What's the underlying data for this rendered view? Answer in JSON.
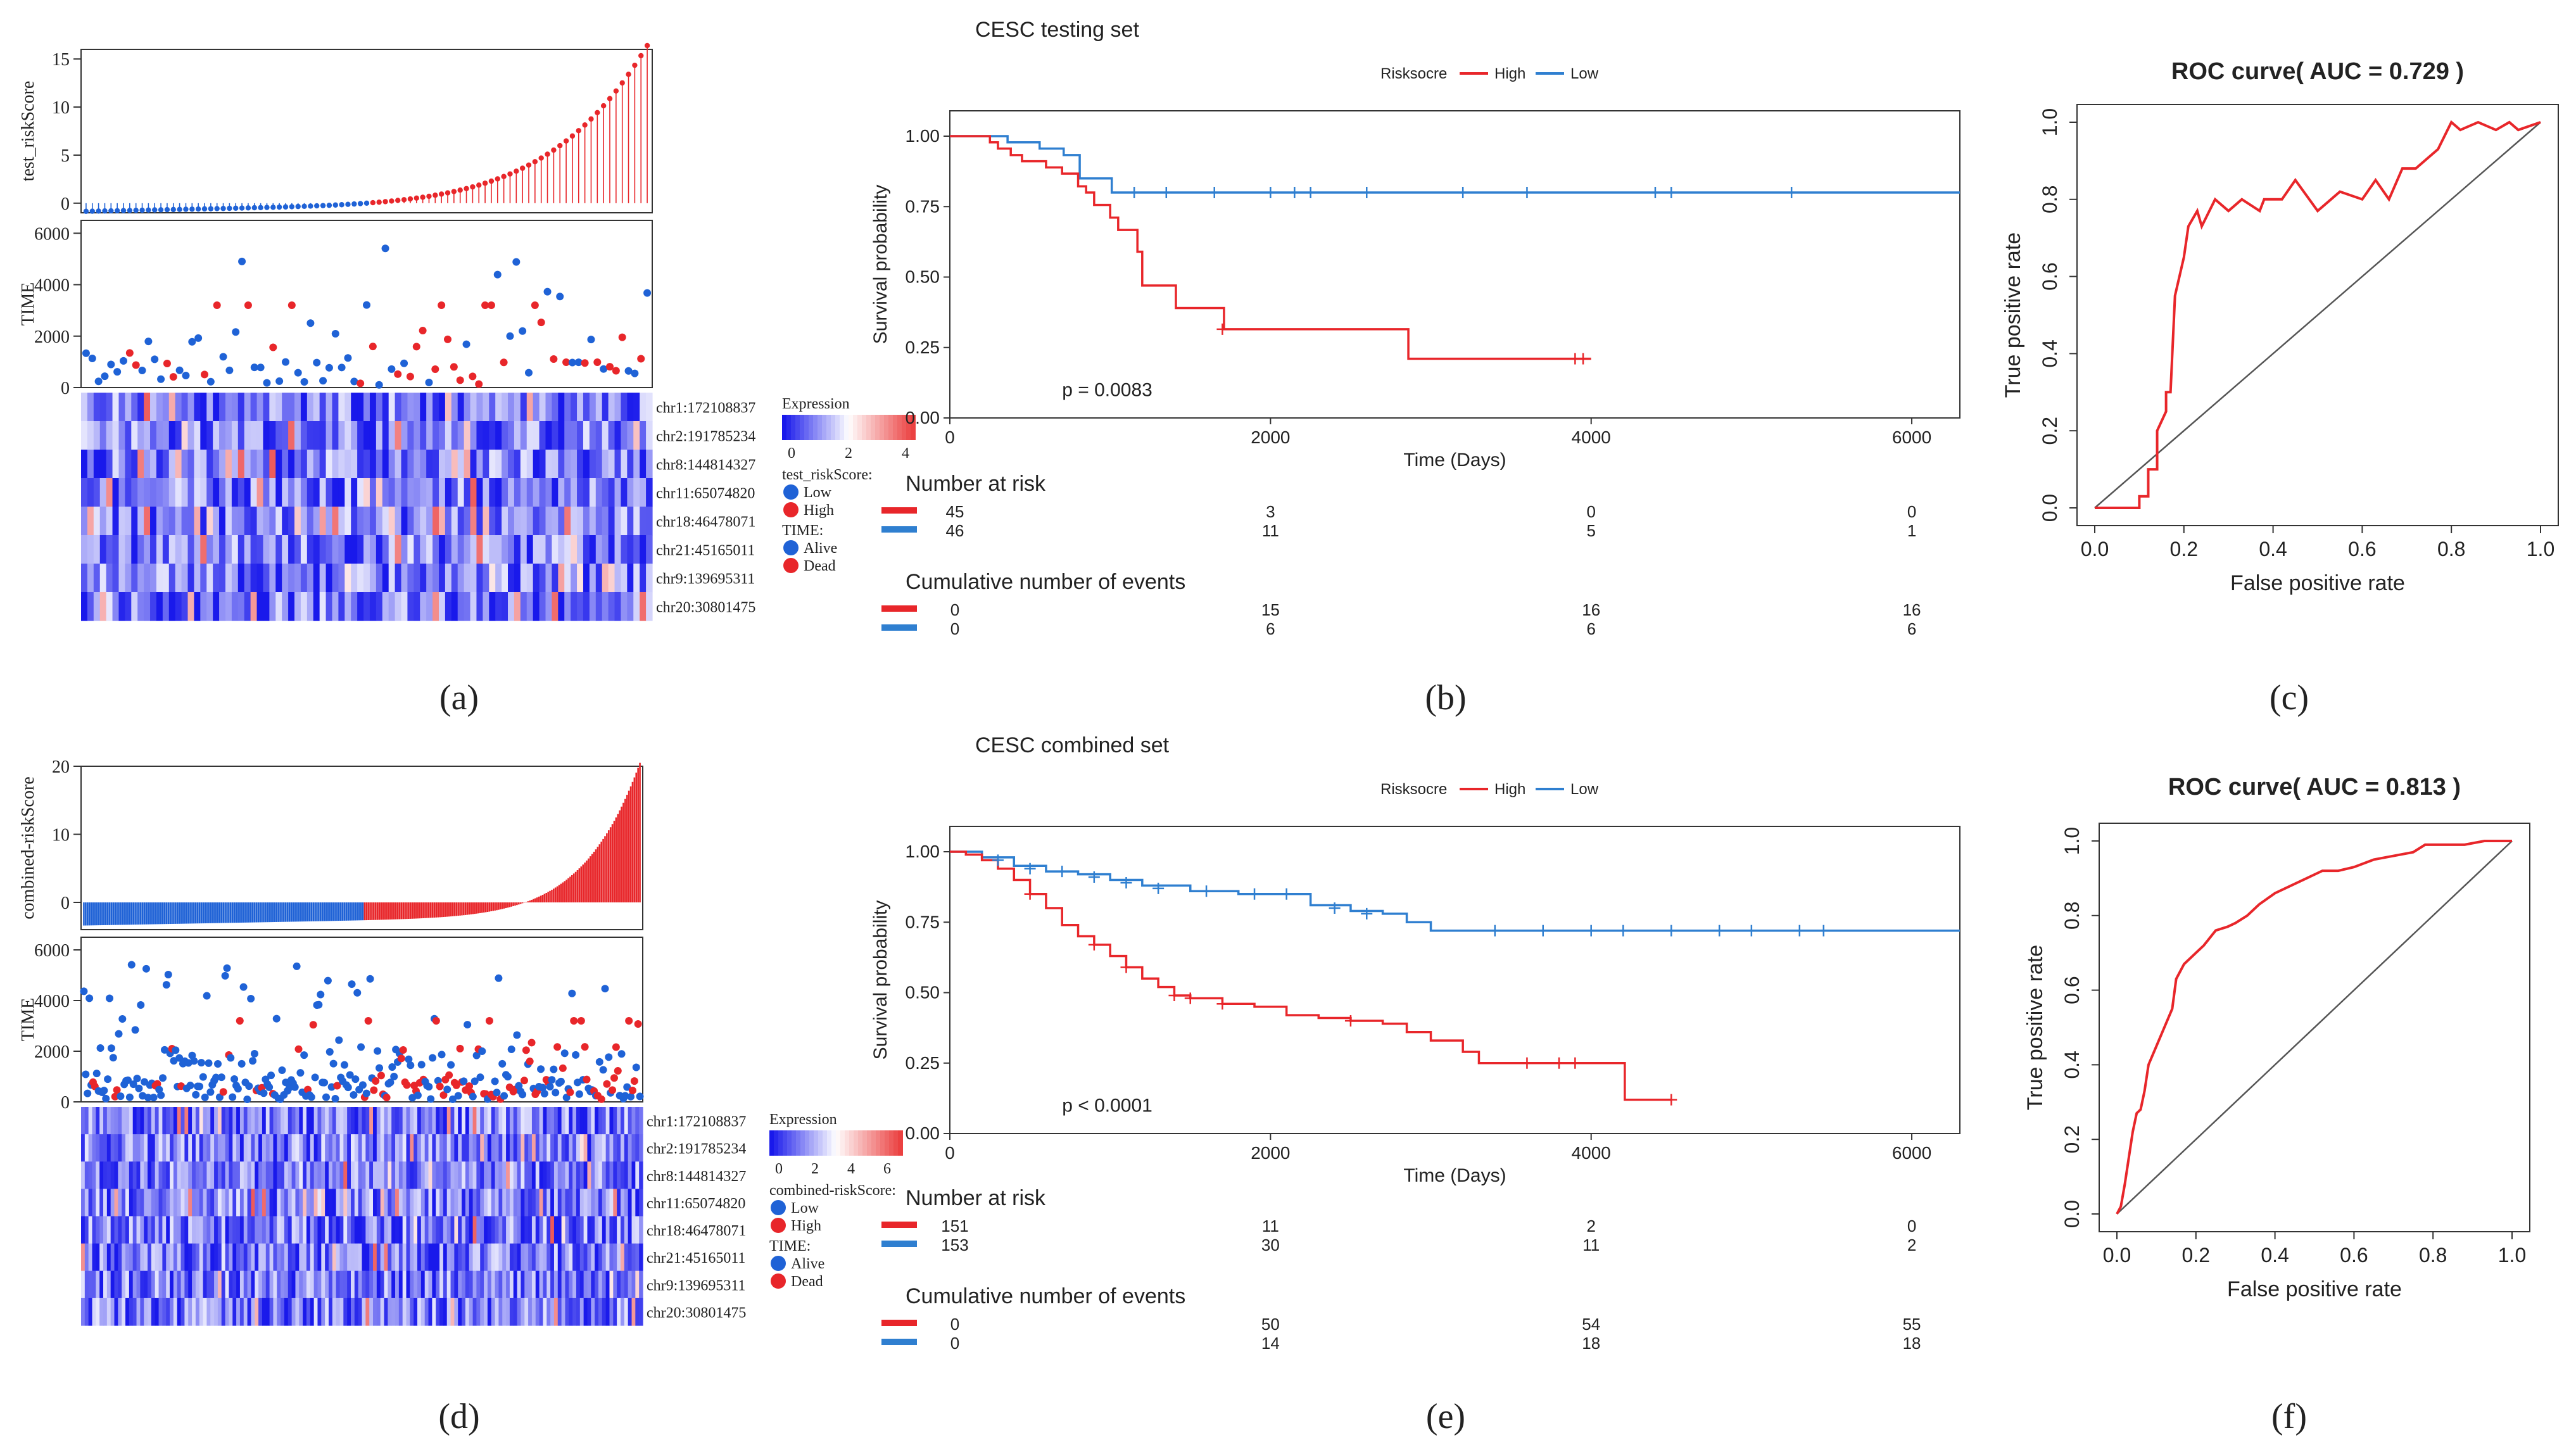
{
  "panel_labels": [
    "(a)",
    "(b)",
    "(c)",
    "(d)",
    "(e)",
    "(f)"
  ],
  "colors": {
    "high": "#e8262a",
    "low": "#1f62d6",
    "km_high": "#e8262a",
    "km_low": "#2f7fd0",
    "ref": "#555555"
  },
  "chart_data": [
    {
      "id": "a",
      "type": "risk-plot",
      "score_label": "test_riskScore",
      "score_ylim": [
        -1,
        16
      ],
      "score_ticks": [
        "0",
        "5",
        "10",
        "15"
      ],
      "time_label": "TIME",
      "time_ylim": [
        0,
        6500
      ],
      "time_ticks": [
        "0",
        "2000",
        "4000",
        "6000"
      ],
      "n_low": 46,
      "n_high": 45,
      "genes": [
        "chr1:172108837",
        "chr2:191785234",
        "chr8:144814327",
        "chr11:65074820",
        "chr18:46478071",
        "chr21:45165011",
        "chr9:139695311",
        "chr20:30801475"
      ],
      "legend": {
        "expression_title": "Expression",
        "expression_ticks": [
          "0",
          "2",
          "4"
        ],
        "risk_title": "test_riskScore:",
        "risk_items": [
          "Low",
          "High"
        ],
        "time_title": "TIME:",
        "time_items": [
          "Alive",
          "Dead"
        ]
      }
    },
    {
      "id": "b",
      "type": "line",
      "title": "CESC testing set",
      "legend_title": "Risksocre",
      "series_names": [
        "High",
        "Low"
      ],
      "xlabel": "Time (Days)",
      "ylabel": "Survival probability",
      "xlim": [
        0,
        6300
      ],
      "ylim": [
        0,
        1.0
      ],
      "xticks": [
        "0",
        "2000",
        "4000",
        "6000"
      ],
      "yticks": [
        "0.00",
        "0.25",
        "0.50",
        "0.75",
        "1.00"
      ],
      "pvalue": "p = 0.0083",
      "high_curve": [
        [
          0,
          1.0
        ],
        [
          200,
          1.0
        ],
        [
          250,
          0.978
        ],
        [
          300,
          0.956
        ],
        [
          380,
          0.933
        ],
        [
          450,
          0.911
        ],
        [
          600,
          0.889
        ],
        [
          700,
          0.867
        ],
        [
          800,
          0.822
        ],
        [
          850,
          0.8
        ],
        [
          900,
          0.756
        ],
        [
          1000,
          0.711
        ],
        [
          1050,
          0.667
        ],
        [
          1150,
          0.667
        ],
        [
          1170,
          0.59
        ],
        [
          1200,
          0.47
        ],
        [
          1400,
          0.47
        ],
        [
          1410,
          0.39
        ],
        [
          1700,
          0.39
        ],
        [
          1710,
          0.315
        ],
        [
          2850,
          0.315
        ],
        [
          2860,
          0.21
        ],
        [
          4000,
          0.21
        ]
      ],
      "high_censor": [
        [
          1700,
          0.315
        ],
        [
          3900,
          0.21
        ],
        [
          3950,
          0.21
        ]
      ],
      "low_curve": [
        [
          0,
          1.0
        ],
        [
          350,
          1.0
        ],
        [
          360,
          0.978
        ],
        [
          550,
          0.978
        ],
        [
          560,
          0.956
        ],
        [
          700,
          0.956
        ],
        [
          710,
          0.933
        ],
        [
          800,
          0.933
        ],
        [
          810,
          0.85
        ],
        [
          1000,
          0.85
        ],
        [
          1010,
          0.8
        ],
        [
          6300,
          0.8
        ]
      ],
      "low_censor": [
        [
          1150,
          0.8
        ],
        [
          1350,
          0.8
        ],
        [
          1650,
          0.8
        ],
        [
          2000,
          0.8
        ],
        [
          2150,
          0.8
        ],
        [
          2250,
          0.8
        ],
        [
          2600,
          0.8
        ],
        [
          3200,
          0.8
        ],
        [
          3600,
          0.8
        ],
        [
          4400,
          0.8
        ],
        [
          4500,
          0.8
        ],
        [
          5250,
          0.8
        ]
      ],
      "risk_table": {
        "title": "Number at risk",
        "high": [
          "45",
          "3",
          "0",
          "0"
        ],
        "low": [
          "46",
          "11",
          "5",
          "1"
        ]
      },
      "events_table": {
        "title": "Cumulative number of events",
        "high": [
          "0",
          "15",
          "16",
          "16"
        ],
        "low": [
          "0",
          "6",
          "6",
          "6"
        ]
      }
    },
    {
      "id": "c",
      "type": "line",
      "title": "ROC curve( AUC =  0.729 )",
      "xlabel": "False positive rate",
      "ylabel": "True positive rate",
      "xlim": [
        0,
        1
      ],
      "ylim": [
        0,
        1
      ],
      "ticks": [
        "0.0",
        "0.2",
        "0.4",
        "0.6",
        "0.8",
        "1.0"
      ],
      "auc": 0.729,
      "curve": [
        [
          0,
          0
        ],
        [
          0.1,
          0
        ],
        [
          0.1,
          0.03
        ],
        [
          0.12,
          0.03
        ],
        [
          0.12,
          0.1
        ],
        [
          0.14,
          0.1
        ],
        [
          0.14,
          0.2
        ],
        [
          0.16,
          0.25
        ],
        [
          0.16,
          0.3
        ],
        [
          0.17,
          0.3
        ],
        [
          0.18,
          0.55
        ],
        [
          0.2,
          0.65
        ],
        [
          0.21,
          0.73
        ],
        [
          0.23,
          0.77
        ],
        [
          0.24,
          0.73
        ],
        [
          0.27,
          0.8
        ],
        [
          0.3,
          0.77
        ],
        [
          0.33,
          0.8
        ],
        [
          0.37,
          0.77
        ],
        [
          0.38,
          0.8
        ],
        [
          0.42,
          0.8
        ],
        [
          0.45,
          0.85
        ],
        [
          0.5,
          0.77
        ],
        [
          0.55,
          0.82
        ],
        [
          0.6,
          0.8
        ],
        [
          0.63,
          0.85
        ],
        [
          0.66,
          0.8
        ],
        [
          0.69,
          0.88
        ],
        [
          0.72,
          0.88
        ],
        [
          0.77,
          0.93
        ],
        [
          0.8,
          1.0
        ],
        [
          0.82,
          0.98
        ],
        [
          0.86,
          1.0
        ],
        [
          0.9,
          0.98
        ],
        [
          0.93,
          1.0
        ],
        [
          0.95,
          0.98
        ],
        [
          1.0,
          1.0
        ]
      ]
    },
    {
      "id": "d",
      "type": "risk-plot",
      "score_label": "combined-riskScore",
      "score_ylim": [
        -4,
        20
      ],
      "score_ticks": [
        "0",
        "10",
        "20"
      ],
      "time_label": "TIME",
      "time_ylim": [
        0,
        6500
      ],
      "time_ticks": [
        "0",
        "2000",
        "4000",
        "6000"
      ],
      "n_low": 153,
      "n_high": 151,
      "genes": [
        "chr1:172108837",
        "chr2:191785234",
        "chr8:144814327",
        "chr11:65074820",
        "chr18:46478071",
        "chr21:45165011",
        "chr9:139695311",
        "chr20:30801475"
      ],
      "legend": {
        "expression_title": "Expression",
        "expression_ticks": [
          "0",
          "2",
          "4",
          "6"
        ],
        "risk_title": "combined-riskScore:",
        "risk_items": [
          "Low",
          "High"
        ],
        "time_title": "TIME:",
        "time_items": [
          "Alive",
          "Dead"
        ]
      }
    },
    {
      "id": "e",
      "type": "line",
      "title": "CESC combined set",
      "legend_title": "Risksocre",
      "series_names": [
        "High",
        "Low"
      ],
      "xlabel": "Time (Days)",
      "ylabel": "Survival probability",
      "xlim": [
        0,
        6300
      ],
      "ylim": [
        0,
        1.0
      ],
      "xticks": [
        "0",
        "2000",
        "4000",
        "6000"
      ],
      "yticks": [
        "0.00",
        "0.25",
        "0.50",
        "0.75",
        "1.00"
      ],
      "pvalue": "p < 0.0001",
      "high_curve": [
        [
          0,
          1.0
        ],
        [
          100,
          0.99
        ],
        [
          200,
          0.97
        ],
        [
          300,
          0.94
        ],
        [
          400,
          0.9
        ],
        [
          500,
          0.85
        ],
        [
          600,
          0.8
        ],
        [
          700,
          0.74
        ],
        [
          800,
          0.7
        ],
        [
          900,
          0.67
        ],
        [
          1000,
          0.63
        ],
        [
          1100,
          0.59
        ],
        [
          1200,
          0.55
        ],
        [
          1300,
          0.52
        ],
        [
          1400,
          0.49
        ],
        [
          1500,
          0.48
        ],
        [
          1700,
          0.46
        ],
        [
          1900,
          0.45
        ],
        [
          2100,
          0.42
        ],
        [
          2300,
          0.41
        ],
        [
          2500,
          0.4
        ],
        [
          2700,
          0.39
        ],
        [
          2850,
          0.36
        ],
        [
          3000,
          0.33
        ],
        [
          3200,
          0.29
        ],
        [
          3300,
          0.25
        ],
        [
          4200,
          0.25
        ],
        [
          4210,
          0.12
        ],
        [
          4500,
          0.12
        ]
      ],
      "high_censor": [
        [
          500,
          0.85
        ],
        [
          900,
          0.67
        ],
        [
          1100,
          0.59
        ],
        [
          1400,
          0.49
        ],
        [
          1500,
          0.48
        ],
        [
          1700,
          0.46
        ],
        [
          2500,
          0.4
        ],
        [
          3600,
          0.25
        ],
        [
          3800,
          0.25
        ],
        [
          3900,
          0.25
        ],
        [
          4500,
          0.12
        ]
      ],
      "low_curve": [
        [
          0,
          1.0
        ],
        [
          200,
          0.98
        ],
        [
          400,
          0.95
        ],
        [
          600,
          0.93
        ],
        [
          800,
          0.92
        ],
        [
          1000,
          0.9
        ],
        [
          1200,
          0.88
        ],
        [
          1500,
          0.86
        ],
        [
          1800,
          0.85
        ],
        [
          2200,
          0.85
        ],
        [
          2250,
          0.81
        ],
        [
          2500,
          0.79
        ],
        [
          2700,
          0.78
        ],
        [
          2850,
          0.75
        ],
        [
          3000,
          0.72
        ],
        [
          6300,
          0.72
        ]
      ],
      "low_censor": [
        [
          300,
          0.97
        ],
        [
          500,
          0.94
        ],
        [
          700,
          0.93
        ],
        [
          900,
          0.91
        ],
        [
          1100,
          0.89
        ],
        [
          1300,
          0.87
        ],
        [
          1600,
          0.86
        ],
        [
          1900,
          0.85
        ],
        [
          2100,
          0.85
        ],
        [
          2400,
          0.8
        ],
        [
          2600,
          0.78
        ],
        [
          3400,
          0.72
        ],
        [
          3700,
          0.72
        ],
        [
          4000,
          0.72
        ],
        [
          4200,
          0.72
        ],
        [
          4500,
          0.72
        ],
        [
          4800,
          0.72
        ],
        [
          5000,
          0.72
        ],
        [
          5300,
          0.72
        ],
        [
          5450,
          0.72
        ]
      ],
      "risk_table": {
        "title": "Number at risk",
        "high": [
          "151",
          "11",
          "2",
          "0"
        ],
        "low": [
          "153",
          "30",
          "11",
          "2"
        ]
      },
      "events_table": {
        "title": "Cumulative number of events",
        "high": [
          "0",
          "50",
          "54",
          "55"
        ],
        "low": [
          "0",
          "14",
          "18",
          "18"
        ]
      }
    },
    {
      "id": "f",
      "type": "line",
      "title": "ROC curve( AUC =  0.813 )",
      "xlabel": "False positive rate",
      "ylabel": "True positive rate",
      "xlim": [
        0,
        1
      ],
      "ylim": [
        0,
        1
      ],
      "ticks": [
        "0.0",
        "0.2",
        "0.4",
        "0.6",
        "0.8",
        "1.0"
      ],
      "auc": 0.813,
      "curve": [
        [
          0,
          0
        ],
        [
          0.01,
          0.02
        ],
        [
          0.02,
          0.08
        ],
        [
          0.03,
          0.15
        ],
        [
          0.04,
          0.22
        ],
        [
          0.05,
          0.27
        ],
        [
          0.06,
          0.28
        ],
        [
          0.07,
          0.33
        ],
        [
          0.08,
          0.4
        ],
        [
          0.1,
          0.45
        ],
        [
          0.12,
          0.5
        ],
        [
          0.14,
          0.55
        ],
        [
          0.15,
          0.63
        ],
        [
          0.17,
          0.67
        ],
        [
          0.2,
          0.7
        ],
        [
          0.22,
          0.72
        ],
        [
          0.25,
          0.76
        ],
        [
          0.28,
          0.77
        ],
        [
          0.3,
          0.78
        ],
        [
          0.33,
          0.8
        ],
        [
          0.36,
          0.83
        ],
        [
          0.4,
          0.86
        ],
        [
          0.44,
          0.88
        ],
        [
          0.48,
          0.9
        ],
        [
          0.52,
          0.92
        ],
        [
          0.56,
          0.92
        ],
        [
          0.6,
          0.93
        ],
        [
          0.65,
          0.95
        ],
        [
          0.7,
          0.96
        ],
        [
          0.75,
          0.97
        ],
        [
          0.78,
          0.99
        ],
        [
          0.82,
          0.99
        ],
        [
          0.88,
          0.99
        ],
        [
          0.93,
          1.0
        ],
        [
          1.0,
          1.0
        ]
      ]
    }
  ]
}
